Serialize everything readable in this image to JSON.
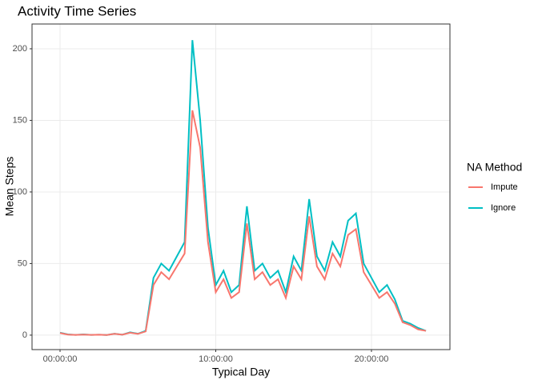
{
  "chart_data": {
    "type": "line",
    "title": "Activity Time Series",
    "x_label": "Typical Day",
    "y_label": "Mean Steps",
    "legend_title": "NA Method",
    "legend": "right",
    "grid": true,
    "x": [
      0,
      0.5,
      1,
      1.5,
      2,
      2.5,
      3,
      3.5,
      4,
      4.5,
      5,
      5.5,
      6,
      6.5,
      7,
      7.5,
      8,
      8.5,
      9,
      9.5,
      10,
      10.5,
      11,
      11.5,
      12,
      12.5,
      13,
      13.5,
      14,
      14.5,
      15,
      15.5,
      16,
      16.5,
      17,
      17.5,
      18,
      18.5,
      19,
      19.5,
      20,
      20.5,
      21,
      21.5,
      22,
      22.5,
      23,
      23.5
    ],
    "series": [
      {
        "name": "Impute",
        "color": "#f8766d",
        "values": [
          1.5,
          0.4,
          0.2,
          0.4,
          0.2,
          0.3,
          0.1,
          0.9,
          0.3,
          1.7,
          0.9,
          2.6,
          35,
          44,
          39,
          48,
          57,
          157,
          131,
          65,
          30,
          39,
          26,
          30,
          78,
          39,
          44,
          35,
          39,
          26,
          48,
          39,
          83,
          48,
          39,
          57,
          48,
          70,
          74,
          44,
          35,
          26,
          30,
          22,
          9,
          7,
          4,
          3
        ]
      },
      {
        "name": "Ignore",
        "color": "#00bfc4",
        "values": [
          1.7,
          0.5,
          0.2,
          0.5,
          0.2,
          0.3,
          0.1,
          1,
          0.3,
          2,
          1,
          3,
          40,
          50,
          45,
          55,
          65,
          206,
          150,
          75,
          35,
          45,
          30,
          35,
          90,
          45,
          50,
          40,
          45,
          30,
          55,
          45,
          95,
          55,
          45,
          65,
          55,
          80,
          85,
          50,
          40,
          30,
          35,
          25,
          10,
          8,
          5,
          3
        ]
      }
    ],
    "xlim": [
      -1.8,
      25.04
    ],
    "ylim": [
      -10.1,
      217.3
    ],
    "xticks": [
      {
        "value": 0,
        "label": "00:00:00"
      },
      {
        "value": 10,
        "label": "10:00:00"
      },
      {
        "value": 20,
        "label": "20:00:00"
      }
    ],
    "yticks": [
      0,
      50,
      100,
      150,
      200
    ]
  }
}
